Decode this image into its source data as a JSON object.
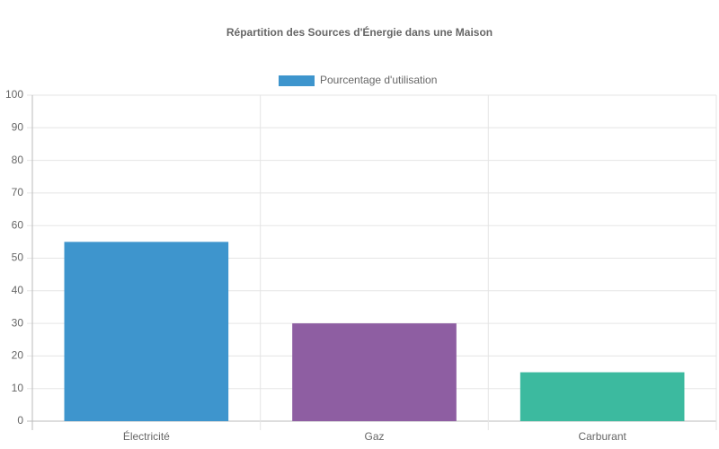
{
  "chart_data": {
    "type": "bar",
    "title": "Répartition des Sources d'Énergie dans une Maison",
    "categories": [
      "Électricité",
      "Gaz",
      "Carburant"
    ],
    "series": [
      {
        "name": "Pourcentage d'utilisation",
        "color": "#3e95cd",
        "colors": [
          "#3e95cd",
          "#8e5ea2",
          "#3cba9f"
        ],
        "values": [
          55,
          30,
          15
        ]
      }
    ],
    "ylim": [
      0,
      100
    ],
    "yticks": [
      0,
      10,
      20,
      30,
      40,
      50,
      60,
      70,
      80,
      90,
      100
    ],
    "grid": true,
    "legend": "top"
  }
}
